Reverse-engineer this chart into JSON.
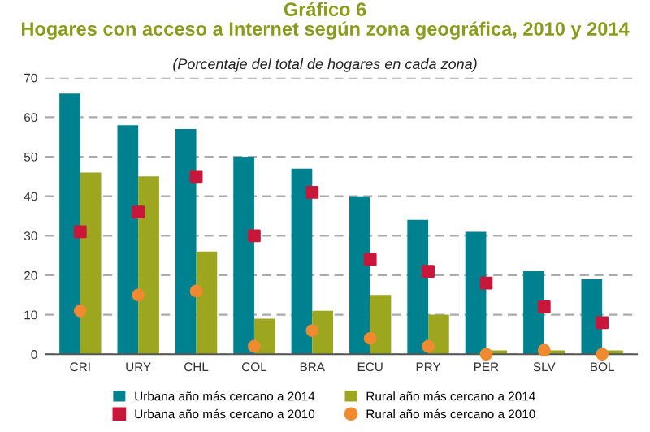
{
  "chart_data": {
    "type": "bar",
    "title": "Gráfico 6\nHogares con acceso a Internet según zona geográfica, 2010 y 2014",
    "subtitle": "(Porcentaje del total de hogares en cada zona)",
    "categories": [
      "CRI",
      "URY",
      "CHL",
      "COL",
      "BRA",
      "ECU",
      "PRY",
      "PER",
      "SLV",
      "BOL"
    ],
    "series": [
      {
        "name": "Urbana año más cercano a 2014",
        "color": "#00818f",
        "values": [
          66,
          58,
          57,
          50,
          47,
          40,
          34,
          31,
          21,
          19
        ]
      },
      {
        "name": "Urbana año más cercano a 2010",
        "color": "#c8173a",
        "type": "scatter",
        "marker": "square",
        "values": [
          31,
          36,
          45,
          30,
          41,
          24,
          21,
          18,
          12,
          8
        ]
      },
      {
        "name": "Rural año más cercano a 2014",
        "color": "#9ca61e",
        "values": [
          46,
          45,
          26,
          9,
          11,
          15,
          10,
          1,
          1,
          1
        ]
      },
      {
        "name": "Rural año más cercano a 2010",
        "color": "#f08a30",
        "type": "scatter",
        "marker": "circle",
        "values": [
          11,
          15,
          16,
          2,
          6,
          4,
          2,
          0,
          1,
          0
        ]
      }
    ],
    "ylim": [
      0,
      70
    ],
    "yticks": [
      0,
      10,
      20,
      30,
      40,
      50,
      60,
      70
    ],
    "grid": "y",
    "legend": "bottom"
  }
}
